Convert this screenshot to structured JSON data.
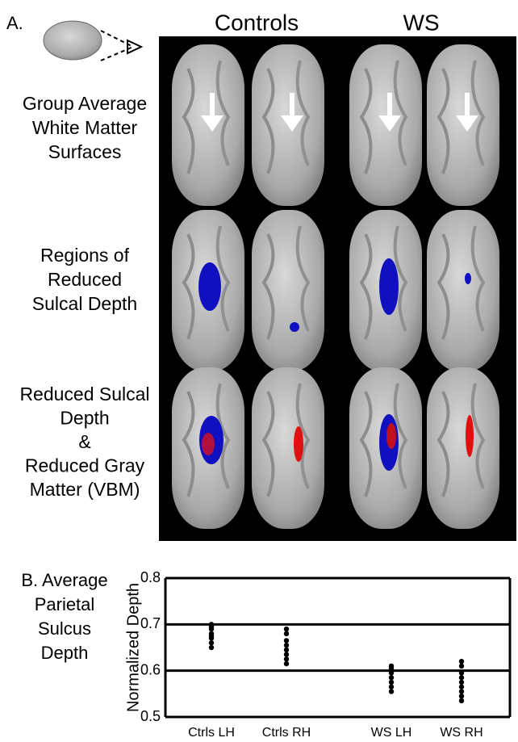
{
  "panel_a": {
    "label": "A.",
    "columns": [
      "Controls",
      "WS"
    ],
    "rows": [
      [
        "Group Average",
        "White Matter",
        "Surfaces"
      ],
      [
        "Regions of",
        "Reduced",
        "Sulcal Depth"
      ],
      [
        "Reduced Sulcal",
        "Depth",
        "&",
        "Reduced Gray",
        "Matter (VBM)"
      ]
    ]
  },
  "chart_data": {
    "type": "strip",
    "label": [
      "B. Average",
      "Parietal",
      "Sulcus",
      "Depth"
    ],
    "y_label": "Normalized Depth",
    "categories": [
      "Ctrls LH",
      "Ctrls RH",
      "WS LH",
      "WS RH"
    ],
    "values": [
      [
        0.7,
        0.695,
        0.69,
        0.68,
        0.675,
        0.67,
        0.66,
        0.65
      ],
      [
        0.69,
        0.68,
        0.665,
        0.655,
        0.645,
        0.635,
        0.625,
        0.615
      ],
      [
        0.61,
        0.605,
        0.595,
        0.585,
        0.575,
        0.565,
        0.555
      ],
      [
        0.62,
        0.61,
        0.595,
        0.585,
        0.575,
        0.565,
        0.555,
        0.545,
        0.535
      ]
    ],
    "color": "#000000",
    "ylim": [
      0.5,
      0.8
    ],
    "yticks": [
      0.5,
      0.6,
      0.7,
      0.8
    ],
    "grid": true
  }
}
